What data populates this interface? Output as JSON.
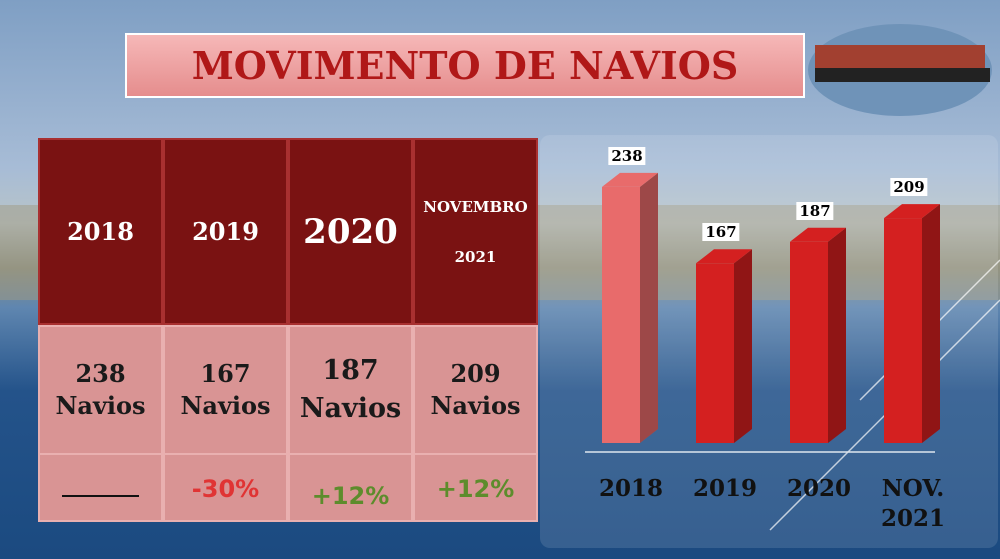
{
  "title": "MOVIMENTO DE NAVIOS",
  "table": {
    "headers": [
      "2018",
      "2019",
      "2020",
      "NOVEMBRO 2021"
    ],
    "counts": [
      "238 Navios",
      "167 Navios",
      "187 Navios",
      "209 Navios"
    ],
    "changes": [
      "-30%",
      "+12%",
      "+12%"
    ]
  },
  "chart_data": {
    "type": "bar3d",
    "categories": [
      "2018",
      "2019",
      "2020",
      "NOV. 2021"
    ],
    "values": [
      238,
      167,
      187,
      209
    ],
    "colors": [
      "#e86b6b",
      "#d42020",
      "#d42020",
      "#d42020"
    ]
  }
}
